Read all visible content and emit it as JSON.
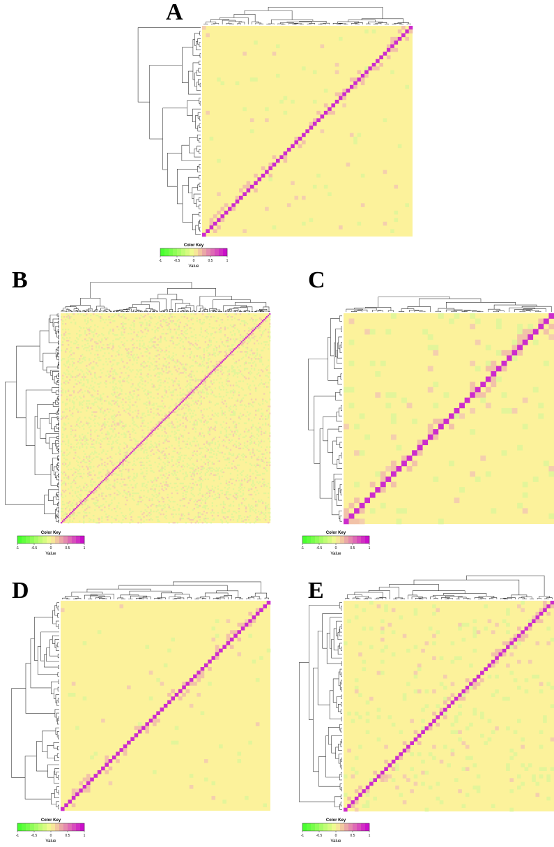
{
  "panels": [
    {
      "label": "A",
      "color_key": {
        "title": "Color Key",
        "xlabel": "Value",
        "xlim": [
          -1,
          1
        ],
        "xticks": [
          -1,
          -0.5,
          0,
          0.5,
          1
        ]
      }
    },
    {
      "label": "B",
      "color_key": {
        "title": "Color Key",
        "xlabel": "Value",
        "xlim": [
          -1,
          1
        ],
        "xticks": [
          -1,
          -0.5,
          0,
          0.5,
          1
        ]
      }
    },
    {
      "label": "C",
      "color_key": {
        "title": "Color Key",
        "xlabel": "Value",
        "xlim": [
          -1,
          1
        ],
        "xticks": [
          -1,
          -0.5,
          0,
          0.5,
          1
        ]
      }
    },
    {
      "label": "D",
      "color_key": {
        "title": "Color Key",
        "xlabel": "Value",
        "xlim": [
          -1,
          1
        ],
        "xticks": [
          -1,
          -0.5,
          0,
          0.5,
          1
        ]
      }
    },
    {
      "label": "E",
      "color_key": {
        "title": "Color Key",
        "xlabel": "Value",
        "xlim": [
          -1,
          1
        ],
        "xticks": [
          -1,
          -0.5,
          0,
          0.5,
          1
        ]
      }
    }
  ]
}
